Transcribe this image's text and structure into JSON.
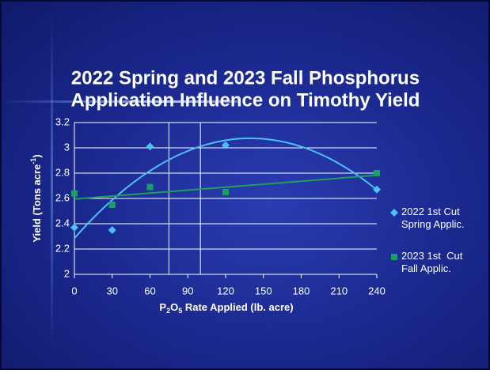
{
  "chart_data": {
    "type": "scatter",
    "title": [
      "2022 Spring and 2023 Fall Phosphorus",
      "Application Influence on Timothy Yield"
    ],
    "x_label": [
      "P",
      "2",
      "O",
      "5",
      " Rate Applied (lb. acre)"
    ],
    "y_label": [
      "Yield (Tons acre",
      "-1",
      ")"
    ],
    "x": [
      0,
      30,
      60,
      120,
      240
    ],
    "series": [
      {
        "name": "2022 1st Cut Spring Applic.",
        "color": "#4cc0f5",
        "marker": "diamond",
        "trendline": "polynomial",
        "values": [
          2.37,
          2.35,
          3.01,
          3.02,
          2.67
        ]
      },
      {
        "name": "2023 1st  Cut Fall Applic.",
        "color": "#1aa060",
        "marker": "square",
        "trendline": "linear",
        "values": [
          2.64,
          2.55,
          2.69,
          2.65,
          2.8
        ]
      }
    ],
    "xlim": [
      0,
      240
    ],
    "xticks": [
      0,
      30,
      60,
      90,
      120,
      150,
      180,
      210,
      240
    ],
    "ylim": [
      2,
      3.2
    ],
    "yticks": [
      2,
      {
        "value": 2.2,
        "label": "2.2"
      },
      {
        "value": 2.4,
        "label": "2.4"
      },
      {
        "value": 2.6,
        "label": "2.6"
      },
      {
        "value": 2.8,
        "label": "2.8"
      },
      3,
      {
        "value": 3.2,
        "label": "3.2"
      }
    ],
    "x_reference_lines": [
      75,
      100
    ],
    "grid": true,
    "legend": "right"
  }
}
